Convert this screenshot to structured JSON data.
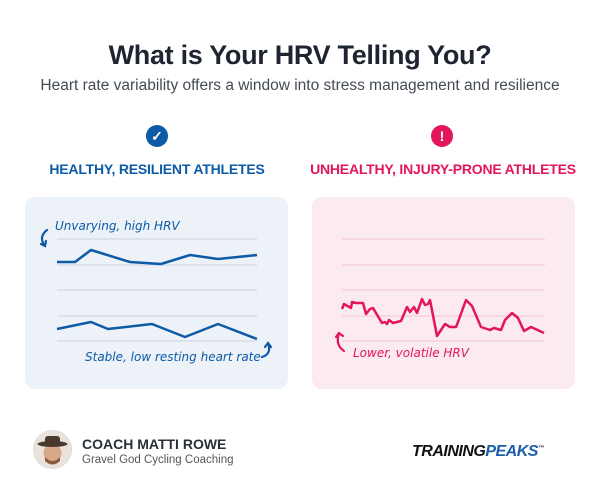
{
  "title": "What is Your HRV Telling You?",
  "subtitle": "Heart rate variability offers a window into stress management and resilience",
  "left": {
    "icon": "check-circle-icon",
    "heading": "HEALTHY, RESILIENT ATHLETES",
    "annotation_top": "Unvarying, high HRV",
    "annotation_bottom": "Stable, low resting heart rate",
    "color": "#0d5aa7",
    "panel_bg": "#edf2f8"
  },
  "right": {
    "icon": "exclamation-circle-icon",
    "heading": "UNHEALTHY, INJURY-PRONE ATHLETES",
    "annotation": "Lower, volatile HRV",
    "color": "#e3165b",
    "panel_bg": "#fceaf1"
  },
  "footer": {
    "coach_name": "COACH MATTI ROWE",
    "coach_org": "Gravel God Cycling Coaching",
    "logo_part1": "TRAINING",
    "logo_part2": "PEAKS",
    "logo_tm": "™"
  },
  "icons": {
    "check": "✓",
    "exclaim": "!"
  }
}
